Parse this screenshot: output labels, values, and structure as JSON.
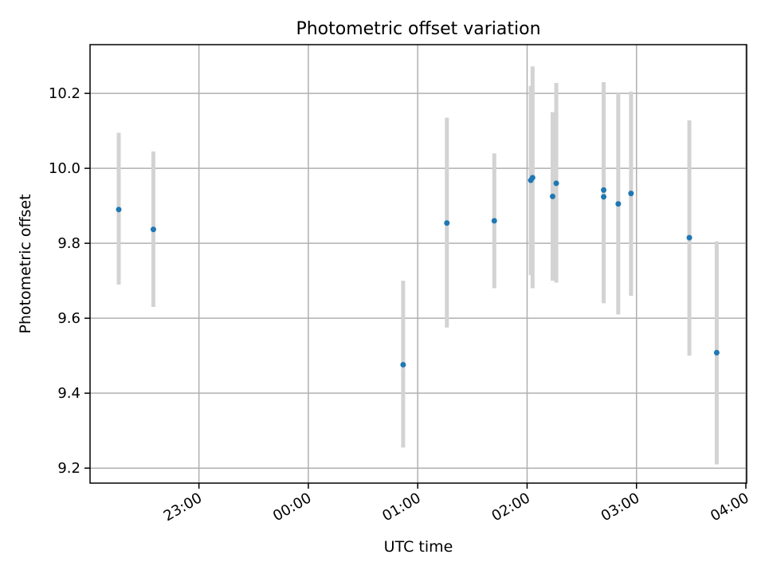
{
  "chart_data": {
    "type": "scatter",
    "title": "Photometric offset variation",
    "xlabel": "UTC time",
    "ylabel": "Photometric offset",
    "x_axis_type": "time",
    "xlim": [
      "22:16",
      "04:00"
    ],
    "ylim": [
      9.16,
      10.33
    ],
    "x_ticks": [
      "23:00",
      "00:00",
      "01:00",
      "02:00",
      "03:00",
      "04:00"
    ],
    "y_ticks": [
      9.2,
      9.4,
      9.6,
      9.8,
      10.0,
      10.2
    ],
    "grid": true,
    "colors": {
      "points": "#1f77b4",
      "error_bars": "#d3d3d3"
    },
    "points": [
      {
        "x": "22:16",
        "y": 9.89,
        "y_low": 9.69,
        "y_high": 10.095
      },
      {
        "x": "22:35",
        "y": 9.837,
        "y_low": 9.63,
        "y_high": 10.045
      },
      {
        "x": "00:52",
        "y": 9.476,
        "y_low": 9.255,
        "y_high": 9.7
      },
      {
        "x": "01:16",
        "y": 9.854,
        "y_low": 9.575,
        "y_high": 10.135
      },
      {
        "x": "01:42",
        "y": 9.86,
        "y_low": 9.68,
        "y_high": 10.04
      },
      {
        "x": "02:02",
        "y": 9.968,
        "y_low": 9.715,
        "y_high": 10.22
      },
      {
        "x": "02:03",
        "y": 9.975,
        "y_low": 9.68,
        "y_high": 10.272
      },
      {
        "x": "02:14",
        "y": 9.925,
        "y_low": 9.7,
        "y_high": 10.15
      },
      {
        "x": "02:16",
        "y": 9.96,
        "y_low": 9.695,
        "y_high": 10.228
      },
      {
        "x": "02:42",
        "y": 9.942,
        "y_low": 9.655,
        "y_high": 10.23
      },
      {
        "x": "02:42",
        "y": 9.924,
        "y_low": 9.64,
        "y_high": 10.205
      },
      {
        "x": "02:50",
        "y": 9.905,
        "y_low": 9.61,
        "y_high": 10.2
      },
      {
        "x": "02:57",
        "y": 9.933,
        "y_low": 9.66,
        "y_high": 10.205
      },
      {
        "x": "03:29",
        "y": 9.815,
        "y_low": 9.5,
        "y_high": 10.128
      },
      {
        "x": "03:44",
        "y": 9.508,
        "y_low": 9.21,
        "y_high": 9.805
      }
    ]
  }
}
